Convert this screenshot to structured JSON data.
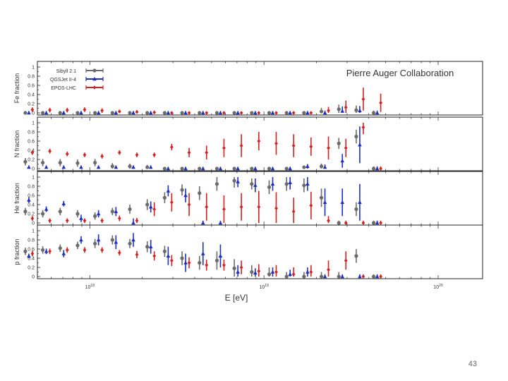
{
  "slide": {
    "number": "43"
  },
  "chart_data": {
    "type": "scatter",
    "title": "Pierre Auger Collaboration",
    "xlabel": "E [eV]",
    "xscale": "log",
    "xlim": [
      5e+17,
      1.8e+20
    ],
    "x_ticks": [
      {
        "value": 1e+18,
        "base": "10",
        "exp": "18"
      },
      {
        "value": 1e+19,
        "base": "10",
        "exp": "19"
      },
      {
        "value": 1e+20,
        "base": "10",
        "exp": "20"
      }
    ],
    "legend": {
      "placement": "top-left",
      "entries": [
        {
          "label": "Sibyll 2.1",
          "color": "#6b6b6b",
          "marker": "circle"
        },
        {
          "label": "QGSJet II-4",
          "color": "#1e2fc0",
          "marker": "triangle"
        },
        {
          "label": "EPOS-LHC",
          "color": "#d42020",
          "marker": "diamond"
        }
      ]
    },
    "energies_log10": [
      17.65,
      17.75,
      17.85,
      17.95,
      18.05,
      18.15,
      18.25,
      18.35,
      18.45,
      18.55,
      18.65,
      18.75,
      18.85,
      18.95,
      19.05,
      19.15,
      19.25,
      19.35,
      19.45,
      19.55,
      19.65
    ],
    "panels": [
      {
        "ylabel": "Fe fraction",
        "ylim": [
          0,
          1
        ],
        "yticks": [
          "0",
          "0.2",
          "0.4",
          "0.6",
          "0.8",
          "1"
        ],
        "series": [
          {
            "name": "Sibyll 2.1",
            "values": [
              0.0,
              0.0,
              0.0,
              0.0,
              0.0,
              0.0,
              0.0,
              0.0,
              0.0,
              0.0,
              0.0,
              0.0,
              0.0,
              0.0,
              0.0,
              0.0,
              0.0,
              0.03,
              0.08,
              0.06,
              0.0
            ],
            "errors": [
              0.04,
              0.04,
              0.04,
              0.04,
              0.04,
              0.04,
              0.04,
              0.04,
              0.04,
              0.04,
              0.04,
              0.04,
              0.04,
              0.04,
              0.04,
              0.04,
              0.04,
              0.08,
              0.1,
              0.1,
              0.05
            ]
          },
          {
            "name": "QGSJet II-4",
            "values": [
              0.0,
              0.0,
              0.0,
              0.0,
              0.0,
              0.0,
              0.0,
              0.0,
              0.0,
              0.0,
              0.0,
              0.0,
              0.0,
              0.0,
              0.0,
              0.0,
              0.0,
              0.0,
              0.04,
              0.05,
              0.0
            ],
            "errors": [
              0.04,
              0.04,
              0.04,
              0.04,
              0.04,
              0.04,
              0.04,
              0.04,
              0.04,
              0.04,
              0.04,
              0.04,
              0.04,
              0.04,
              0.04,
              0.04,
              0.04,
              0.05,
              0.1,
              0.1,
              0.05
            ]
          },
          {
            "name": "EPOS-LHC",
            "values": [
              0.07,
              0.06,
              0.06,
              0.07,
              0.05,
              0.03,
              0.02,
              0.01,
              0.0,
              0.0,
              0.0,
              0.0,
              0.0,
              0.0,
              0.0,
              0.0,
              0.0,
              0.05,
              0.12,
              0.3,
              0.22
            ],
            "errors": [
              0.05,
              0.05,
              0.05,
              0.05,
              0.05,
              0.04,
              0.04,
              0.04,
              0.03,
              0.03,
              0.03,
              0.03,
              0.03,
              0.03,
              0.03,
              0.03,
              0.03,
              0.08,
              0.15,
              0.25,
              0.2
            ]
          }
        ]
      },
      {
        "ylabel": "N fraction",
        "ylim": [
          0,
          1
        ],
        "yticks": [
          "0",
          "0.2",
          "0.4",
          "0.6",
          "0.8",
          "1"
        ],
        "series": [
          {
            "name": "Sibyll 2.1",
            "values": [
              0.15,
              0.13,
              0.13,
              0.12,
              0.13,
              0.05,
              0.05,
              0.03,
              0.0,
              0.0,
              0.0,
              0.0,
              0.0,
              0.0,
              0.0,
              0.0,
              0.03,
              0.05,
              0.55,
              0.7,
              0.0
            ],
            "errors": [
              0.08,
              0.08,
              0.08,
              0.08,
              0.08,
              0.07,
              0.06,
              0.05,
              0.04,
              0.04,
              0.04,
              0.04,
              0.04,
              0.04,
              0.04,
              0.04,
              0.04,
              0.06,
              0.12,
              0.15,
              0.05
            ]
          },
          {
            "name": "QGSJet II-4",
            "values": [
              0.03,
              0.03,
              0.03,
              0.03,
              0.03,
              0.03,
              0.03,
              0.03,
              0.0,
              0.0,
              0.0,
              0.0,
              0.0,
              0.0,
              0.0,
              0.0,
              0.05,
              0.03,
              0.17,
              0.52,
              0.0
            ],
            "errors": [
              0.04,
              0.04,
              0.04,
              0.04,
              0.04,
              0.04,
              0.04,
              0.04,
              0.04,
              0.04,
              0.04,
              0.04,
              0.04,
              0.04,
              0.04,
              0.04,
              0.05,
              0.06,
              0.15,
              0.4,
              0.05
            ]
          },
          {
            "name": "EPOS-LHC",
            "values": [
              0.35,
              0.38,
              0.32,
              0.3,
              0.27,
              0.35,
              0.3,
              0.3,
              0.47,
              0.35,
              0.35,
              0.45,
              0.5,
              0.6,
              0.55,
              0.5,
              0.48,
              0.45,
              0.45,
              0.9,
              0.0
            ],
            "errors": [
              0.05,
              0.05,
              0.05,
              0.05,
              0.05,
              0.05,
              0.05,
              0.05,
              0.07,
              0.1,
              0.15,
              0.2,
              0.25,
              0.2,
              0.25,
              0.25,
              0.2,
              0.25,
              0.2,
              0.15,
              0.05
            ]
          }
        ]
      },
      {
        "ylabel": "He fraction",
        "ylim": [
          0,
          1
        ],
        "yticks": [
          "0",
          "0.2",
          "0.4",
          "0.6",
          "0.8",
          "1"
        ],
        "series": [
          {
            "name": "Sibyll 2.1",
            "values": [
              0.25,
              0.2,
              0.25,
              0.2,
              0.15,
              0.25,
              0.3,
              0.4,
              0.55,
              0.72,
              0.65,
              0.85,
              0.92,
              0.85,
              0.78,
              0.85,
              0.82,
              0.55,
              0.0,
              0.3,
              0.0
            ],
            "errors": [
              0.08,
              0.08,
              0.08,
              0.08,
              0.08,
              0.08,
              0.1,
              0.12,
              0.12,
              0.12,
              0.15,
              0.15,
              0.15,
              0.12,
              0.15,
              0.15,
              0.15,
              0.2,
              0.05,
              0.15,
              0.05
            ]
          },
          {
            "name": "QGSJet II-4",
            "values": [
              0.5,
              0.3,
              0.42,
              0.1,
              0.2,
              0.25,
              0.0,
              0.35,
              0.7,
              0.6,
              0.0,
              0.0,
              0.9,
              0.82,
              0.85,
              0.88,
              0.85,
              0.45,
              0.45,
              0.45,
              0.0
            ],
            "errors": [
              0.06,
              0.06,
              0.06,
              0.08,
              0.08,
              0.1,
              0.1,
              0.12,
              0.12,
              0.15,
              0.05,
              0.05,
              0.12,
              0.15,
              0.15,
              0.15,
              0.15,
              0.3,
              0.3,
              0.4,
              0.05
            ]
          },
          {
            "name": "EPOS-LHC",
            "values": [
              0.1,
              0.05,
              0.05,
              0.05,
              0.05,
              0.1,
              0.05,
              0.3,
              0.45,
              0.4,
              0.35,
              0.3,
              0.35,
              0.35,
              0.32,
              0.25,
              0.38,
              0.05,
              0.0,
              0.0,
              0.0
            ],
            "errors": [
              0.05,
              0.05,
              0.05,
              0.05,
              0.05,
              0.06,
              0.06,
              0.15,
              0.2,
              0.25,
              0.3,
              0.3,
              0.3,
              0.35,
              0.35,
              0.3,
              0.3,
              0.1,
              0.05,
              0.05,
              0.05
            ]
          }
        ]
      },
      {
        "ylabel": "p fraction",
        "ylim": [
          0,
          1
        ],
        "yticks": [
          "0",
          "0.2",
          "0.4",
          "0.6",
          "0.8",
          "1"
        ],
        "series": [
          {
            "name": "Sibyll 2.1",
            "values": [
              0.55,
              0.58,
              0.62,
              0.68,
              0.72,
              0.8,
              0.72,
              0.65,
              0.55,
              0.4,
              0.3,
              0.35,
              0.18,
              0.1,
              0.05,
              0.0,
              0.0,
              0.0,
              0.0,
              0.45,
              0.0
            ],
            "errors": [
              0.08,
              0.08,
              0.08,
              0.08,
              0.1,
              0.1,
              0.1,
              0.12,
              0.12,
              0.15,
              0.15,
              0.2,
              0.2,
              0.15,
              0.15,
              0.1,
              0.1,
              0.1,
              0.1,
              0.15,
              0.05
            ]
          },
          {
            "name": "QGSJet II-4",
            "values": [
              0.45,
              0.55,
              0.5,
              0.8,
              0.8,
              0.75,
              0.8,
              0.65,
              0.45,
              0.3,
              0.5,
              0.45,
              0.1,
              0.08,
              0.1,
              0.05,
              0.1,
              0.0,
              0.0,
              0.0,
              0.0
            ],
            "errors": [
              0.05,
              0.06,
              0.08,
              0.08,
              0.12,
              0.15,
              0.15,
              0.15,
              0.2,
              0.2,
              0.25,
              0.25,
              0.15,
              0.1,
              0.1,
              0.1,
              0.1,
              0.05,
              0.05,
              0.05,
              0.05
            ]
          },
          {
            "name": "EPOS-LHC",
            "values": [
              0.5,
              0.55,
              0.58,
              0.58,
              0.58,
              0.52,
              0.48,
              0.45,
              0.35,
              0.3,
              0.25,
              0.25,
              0.2,
              0.12,
              0.1,
              0.05,
              0.1,
              0.15,
              0.35,
              0.0,
              0.0
            ],
            "errors": [
              0.06,
              0.06,
              0.06,
              0.06,
              0.06,
              0.06,
              0.08,
              0.1,
              0.12,
              0.12,
              0.12,
              0.12,
              0.15,
              0.15,
              0.15,
              0.15,
              0.15,
              0.2,
              0.2,
              0.05,
              0.05
            ]
          }
        ]
      }
    ]
  }
}
